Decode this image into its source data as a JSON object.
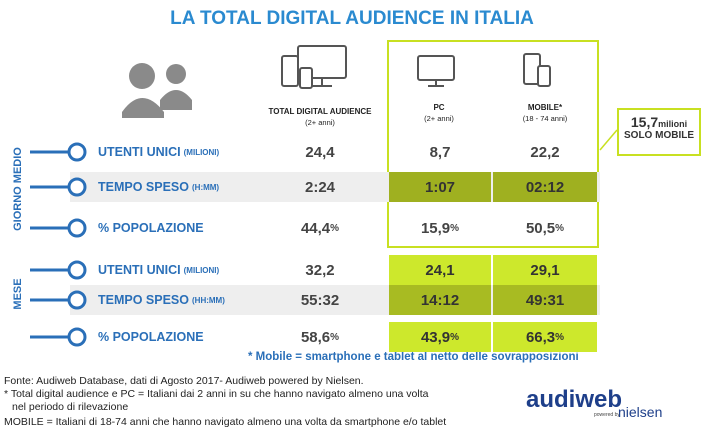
{
  "header": {
    "title": "LA TOTAL DIGITAL AUDIENCE IN ITALIA"
  },
  "columns": [
    {
      "label": "TOTAL DIGITAL AUDIENCE",
      "sub": "(2+ anni)"
    },
    {
      "label": "PC",
      "sub": "(2+ anni)"
    },
    {
      "label": "MOBILE*",
      "sub": "(18 - 74 anni)"
    }
  ],
  "callout": {
    "value": "15,7",
    "unit": "milioni",
    "label": "SOLO MOBILE"
  },
  "sections": [
    {
      "name": "GIORNO MEDIO",
      "rows": [
        {
          "label": "UTENTI UNICI",
          "unit": "(MILIONI)",
          "cells": [
            {
              "value": "24,4"
            },
            {
              "value": "8,7"
            },
            {
              "value": "22,2"
            }
          ]
        },
        {
          "label": "TEMPO SPESO",
          "unit": "(H:MM)",
          "cells": [
            {
              "value": "2:24"
            },
            {
              "value": "1:07"
            },
            {
              "value": "02:12"
            }
          ]
        },
        {
          "label": "% POPOLAZIONE",
          "cells": [
            {
              "value": "44,4",
              "unit": "%"
            },
            {
              "value": "15,9",
              "unit": "%"
            },
            {
              "value": "50,5",
              "unit": "%"
            }
          ]
        }
      ]
    },
    {
      "name": "MESE",
      "rows": [
        {
          "label": "UTENTI UNICI",
          "unit": "(MILIONI)",
          "cells": [
            {
              "value": "32,2"
            },
            {
              "value": "24,1"
            },
            {
              "value": "29,1"
            }
          ]
        },
        {
          "label": "TEMPO SPESO",
          "unit": "(HH:MM)",
          "cells": [
            {
              "value": "55:32"
            },
            {
              "value": "14:12"
            },
            {
              "value": "49:31"
            }
          ]
        },
        {
          "label": "% POPOLAZIONE",
          "cells": [
            {
              "value": "58,6",
              "unit": "%"
            },
            {
              "value": "43,9",
              "unit": "%"
            },
            {
              "value": "66,3",
              "unit": "%"
            }
          ]
        }
      ]
    }
  ],
  "footnote": "* Mobile = smartphone e tablet al netto delle sovrapposizioni",
  "source": {
    "lines": [
      "Fonte: Audiweb Database, dati di Agosto 2017- Audiweb powered by Nielsen.",
      "* Total digital audience e PC = Italiani dai 2 anni in su che hanno navigato almeno una volta",
      "nel periodo di rilevazione",
      "MOBILE = Italiani di 18-74 anni che hanno navigato almeno una volta da smartphone e/o tablet"
    ]
  },
  "logo": {
    "brand": "audiweb",
    "powered": "powered by",
    "partner": "nielsen"
  }
}
